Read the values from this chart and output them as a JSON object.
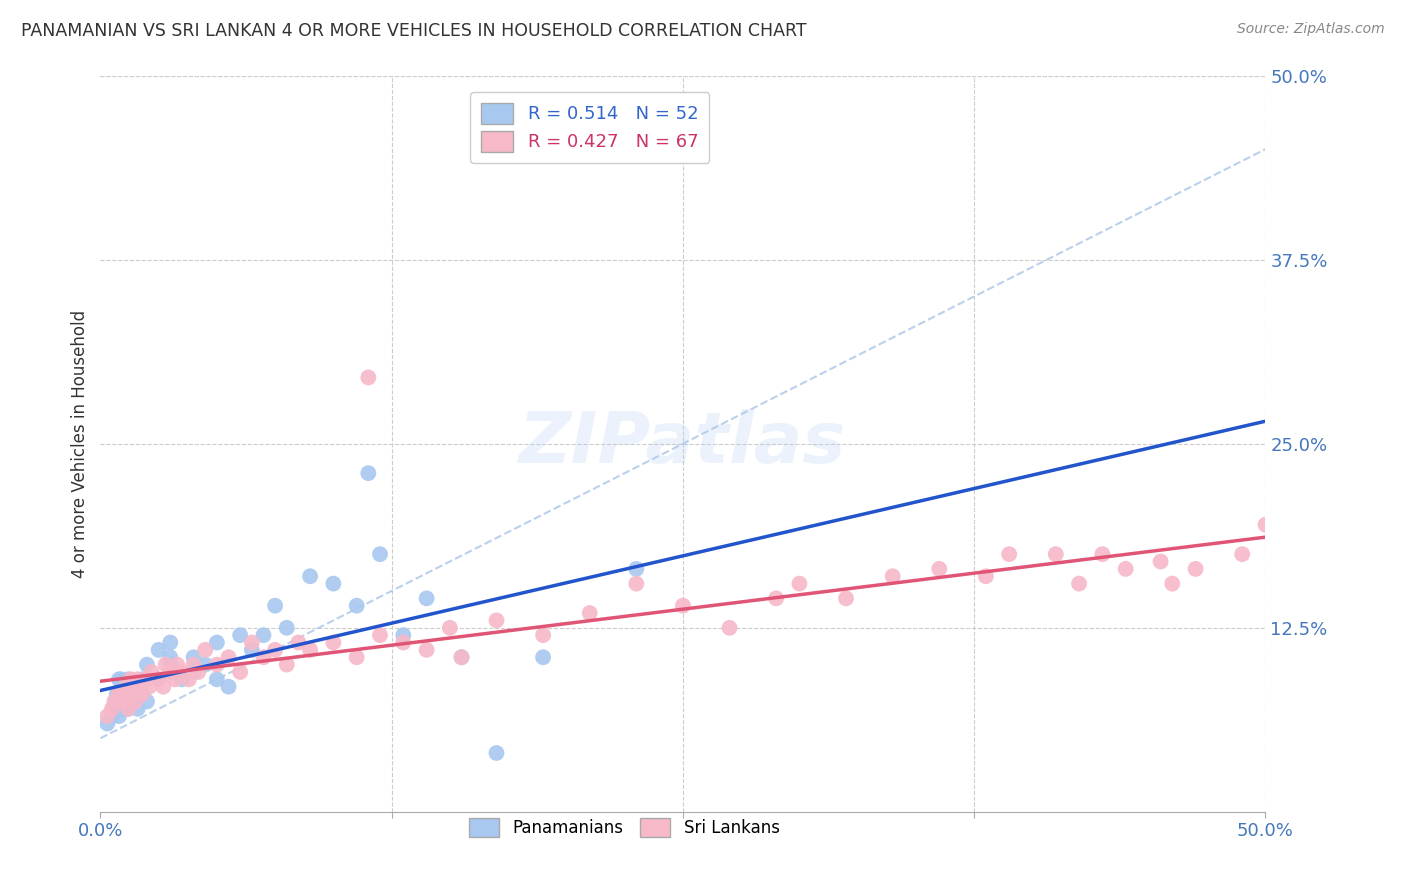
{
  "title": "PANAMANIAN VS SRI LANKAN 4 OR MORE VEHICLES IN HOUSEHOLD CORRELATION CHART",
  "source": "Source: ZipAtlas.com",
  "ylabel": "4 or more Vehicles in Household",
  "xlim": [
    0.0,
    0.5
  ],
  "ylim": [
    0.0,
    0.5
  ],
  "xtick_values": [
    0.0,
    0.125,
    0.25,
    0.375,
    0.5
  ],
  "xtick_labels": [
    "0.0%",
    "",
    "",
    "",
    "50.0%"
  ],
  "right_ytick_values": [
    0.5,
    0.375,
    0.25,
    0.125
  ],
  "right_ytick_labels": [
    "50.0%",
    "37.5%",
    "25.0%",
    "12.5%"
  ],
  "panamanian_color": "#A8C8F0",
  "srilankan_color": "#F7B8C8",
  "panamanian_line_color": "#2255CC",
  "srilankan_line_color": "#E05575",
  "dashed_line_color": "#B0C8E8",
  "legend_R_pan": "0.514",
  "legend_N_pan": "52",
  "legend_R_sri": "0.427",
  "legend_N_sri": "67",
  "watermark": "ZIPatlas",
  "panamanian_x": [
    0.003,
    0.005,
    0.006,
    0.007,
    0.007,
    0.008,
    0.008,
    0.009,
    0.009,
    0.01,
    0.01,
    0.01,
    0.012,
    0.012,
    0.013,
    0.013,
    0.014,
    0.015,
    0.016,
    0.017,
    0.018,
    0.02,
    0.02,
    0.02,
    0.025,
    0.025,
    0.03,
    0.03,
    0.03,
    0.035,
    0.04,
    0.04,
    0.045,
    0.05,
    0.05,
    0.055,
    0.06,
    0.065,
    0.07,
    0.075,
    0.08,
    0.09,
    0.1,
    0.11,
    0.115,
    0.12,
    0.13,
    0.14,
    0.155,
    0.17,
    0.19,
    0.23
  ],
  "panamanian_y": [
    0.06,
    0.065,
    0.07,
    0.075,
    0.08,
    0.065,
    0.09,
    0.08,
    0.09,
    0.07,
    0.075,
    0.085,
    0.07,
    0.09,
    0.075,
    0.08,
    0.085,
    0.08,
    0.07,
    0.085,
    0.09,
    0.075,
    0.09,
    0.1,
    0.09,
    0.11,
    0.1,
    0.105,
    0.115,
    0.09,
    0.095,
    0.105,
    0.1,
    0.09,
    0.115,
    0.085,
    0.12,
    0.11,
    0.12,
    0.14,
    0.125,
    0.16,
    0.155,
    0.14,
    0.23,
    0.175,
    0.12,
    0.145,
    0.105,
    0.04,
    0.105,
    0.165
  ],
  "srilankan_x": [
    0.003,
    0.005,
    0.006,
    0.008,
    0.009,
    0.01,
    0.011,
    0.012,
    0.013,
    0.014,
    0.015,
    0.016,
    0.017,
    0.018,
    0.02,
    0.021,
    0.022,
    0.025,
    0.027,
    0.028,
    0.03,
    0.032,
    0.033,
    0.035,
    0.038,
    0.04,
    0.042,
    0.045,
    0.05,
    0.055,
    0.06,
    0.065,
    0.07,
    0.075,
    0.08,
    0.085,
    0.09,
    0.1,
    0.11,
    0.115,
    0.12,
    0.13,
    0.14,
    0.15,
    0.155,
    0.17,
    0.19,
    0.21,
    0.23,
    0.25,
    0.27,
    0.29,
    0.3,
    0.32,
    0.34,
    0.36,
    0.38,
    0.39,
    0.41,
    0.42,
    0.43,
    0.44,
    0.455,
    0.46,
    0.47,
    0.49,
    0.5
  ],
  "srilankan_y": [
    0.065,
    0.07,
    0.075,
    0.08,
    0.075,
    0.08,
    0.085,
    0.07,
    0.09,
    0.08,
    0.075,
    0.09,
    0.085,
    0.08,
    0.09,
    0.085,
    0.095,
    0.09,
    0.085,
    0.1,
    0.095,
    0.09,
    0.1,
    0.095,
    0.09,
    0.1,
    0.095,
    0.11,
    0.1,
    0.105,
    0.095,
    0.115,
    0.105,
    0.11,
    0.1,
    0.115,
    0.11,
    0.115,
    0.105,
    0.295,
    0.12,
    0.115,
    0.11,
    0.125,
    0.105,
    0.13,
    0.12,
    0.135,
    0.155,
    0.14,
    0.125,
    0.145,
    0.155,
    0.145,
    0.16,
    0.165,
    0.16,
    0.175,
    0.175,
    0.155,
    0.175,
    0.165,
    0.17,
    0.155,
    0.165,
    0.175,
    0.195
  ],
  "background_color": "#FFFFFF",
  "grid_color": "#CCCCCC"
}
